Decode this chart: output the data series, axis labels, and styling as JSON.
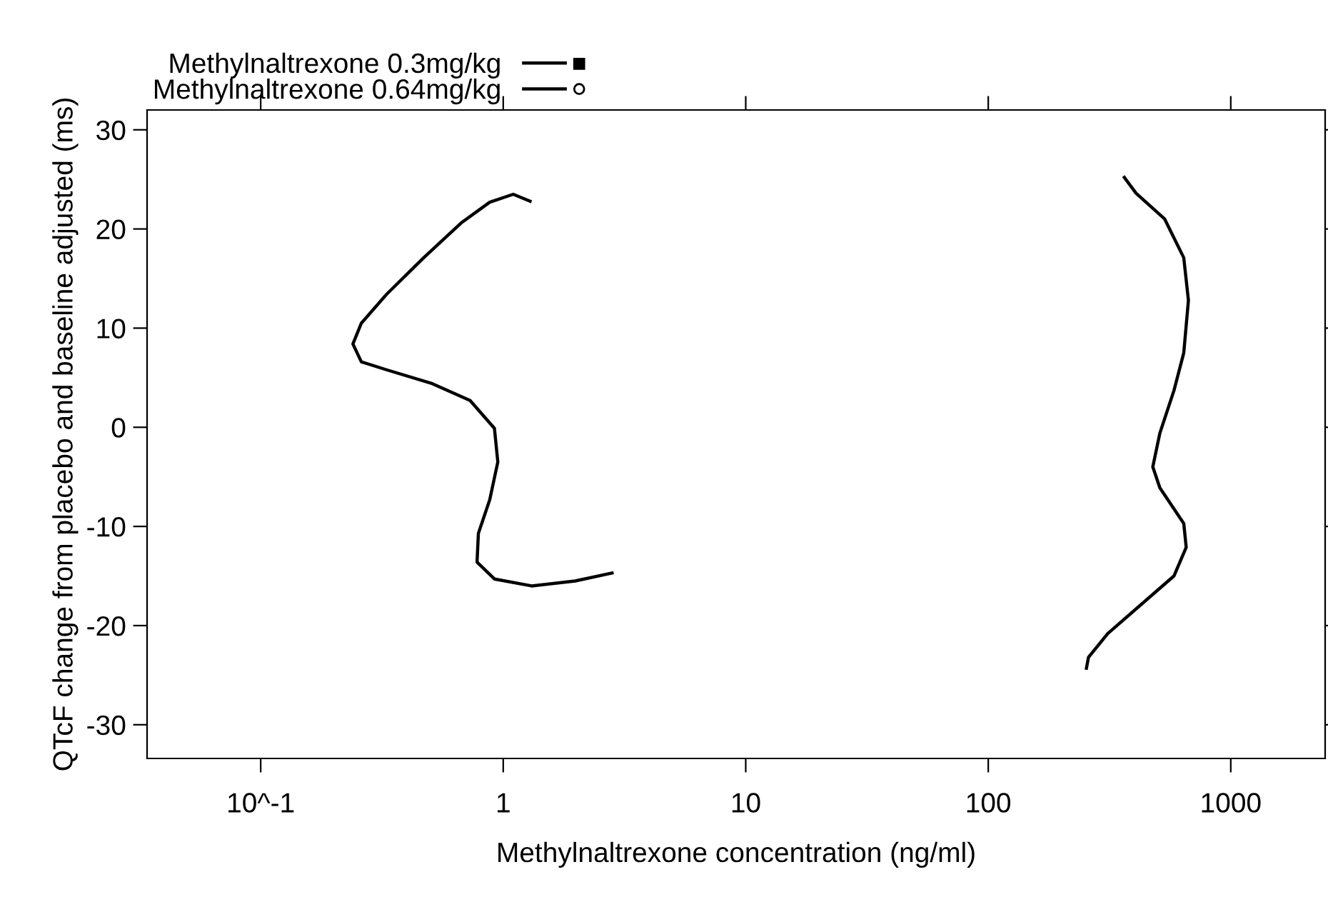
{
  "chart_data": {
    "type": "line",
    "xlabel": "Methylnaltrexone concentration (ng/ml)",
    "ylabel": "QTcF change from placebo and baseline adjusted (ms)",
    "log": "x",
    "xlim": [
      0.034,
      2450
    ],
    "xticks": [
      {
        "value": 0.1,
        "label": "10^-1"
      },
      1,
      10,
      100,
      1000
    ],
    "ylim": [
      -33.4,
      32
    ],
    "yticks": [
      -30,
      -20,
      -10,
      0,
      10,
      20,
      30
    ],
    "grid": false,
    "legend": "top left",
    "line_style": "solid",
    "series": [
      {
        "name": "Methylnaltrexone 0.3mg/kg",
        "color": "#000000",
        "x": [
          1.29,
          1.1,
          0.88,
          0.67,
          0.47,
          0.33,
          0.26,
          0.24,
          0.26,
          0.33,
          0.51,
          0.73,
          0.92,
          0.95,
          0.88,
          0.79,
          0.78,
          0.92,
          1.31,
          1.98,
          2.81
        ],
        "values": [
          22.8,
          23.5,
          22.7,
          20.6,
          17.1,
          13.4,
          10.5,
          8.4,
          6.6,
          5.8,
          4.4,
          2.7,
          -0.1,
          -3.5,
          -7.3,
          -10.7,
          -13.6,
          -15.3,
          -16.0,
          -15.5,
          -14.7
        ]
      },
      {
        "name": "Methylnaltrexone 0.64mg/kg",
        "color": "#000000",
        "x": [
          364,
          407,
          534,
          640,
          669,
          640,
          583,
          510,
          477,
          510,
          640,
          655,
          583,
          426,
          311,
          259,
          254
        ],
        "values": [
          25.2,
          23.6,
          21.0,
          17.1,
          12.8,
          7.5,
          3.7,
          -0.6,
          -4.0,
          -6.1,
          -9.7,
          -12.1,
          -15.0,
          -17.9,
          -20.8,
          -23.2,
          -24.3
        ]
      }
    ]
  }
}
